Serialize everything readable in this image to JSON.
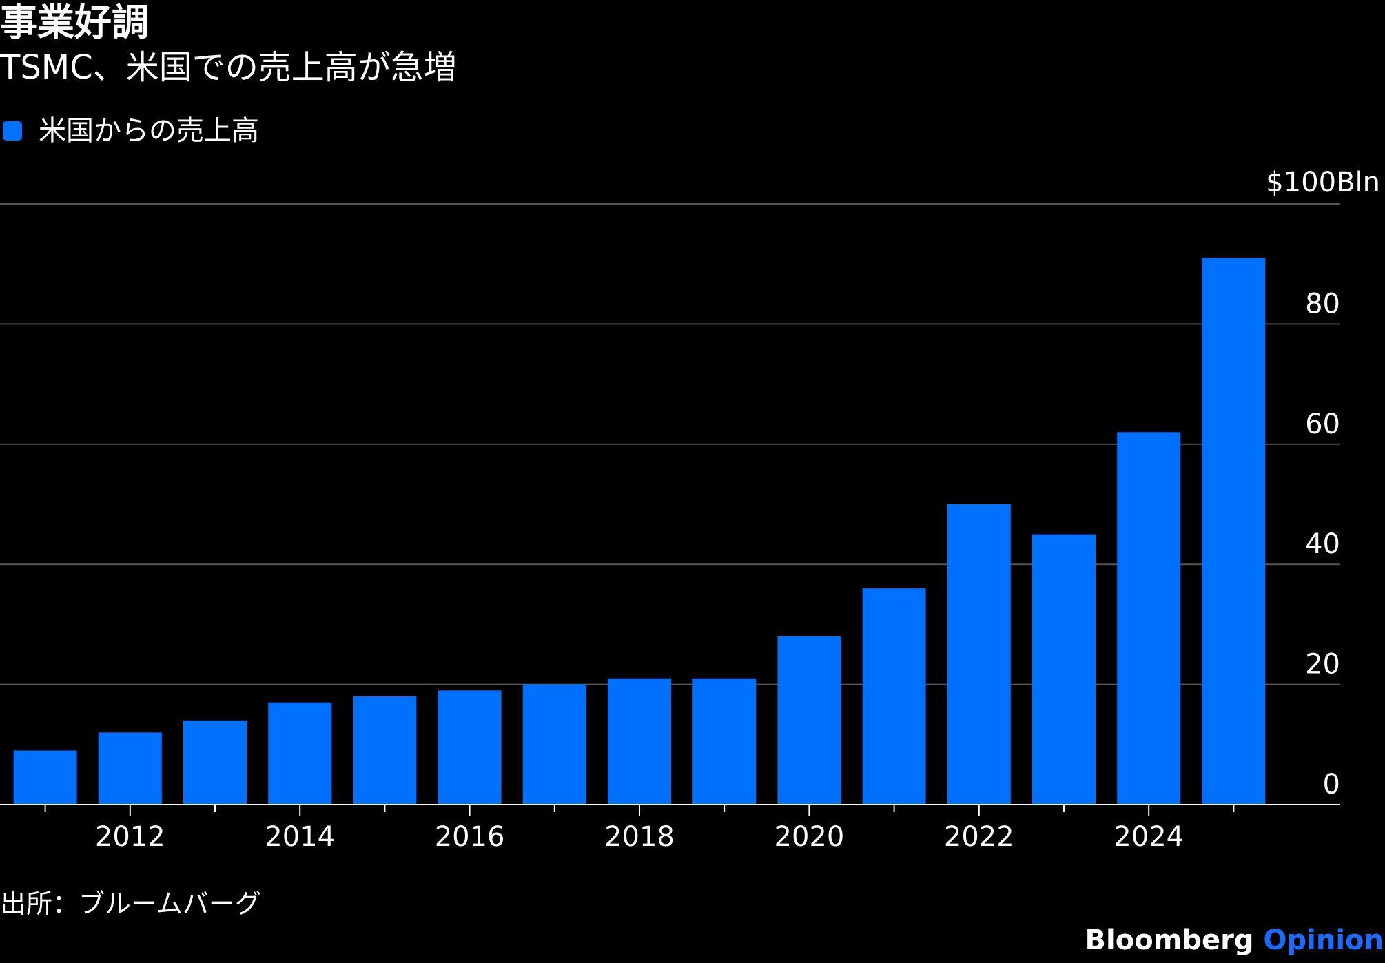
{
  "title": "事業好調",
  "subtitle": "TSMC、米国での売上高が急増",
  "legend": {
    "label": "米国からの売上高",
    "color": "#0070ff"
  },
  "source": "出所：ブルームバーグ",
  "branding": {
    "main": "Bloomberg",
    "accent": "Opinion",
    "accent_color": "#1a6bff"
  },
  "chart_data": {
    "type": "bar",
    "categories": [
      "2011",
      "2012",
      "2013",
      "2014",
      "2015",
      "2016",
      "2017",
      "2018",
      "2019",
      "2020",
      "2021",
      "2022",
      "2023",
      "2024",
      "2025"
    ],
    "x_tick_labels": [
      "2012",
      "2014",
      "2016",
      "2018",
      "2020",
      "2022",
      "2024"
    ],
    "series": [
      {
        "name": "米国からの売上高",
        "color": "#0070ff",
        "values": [
          9,
          12,
          14,
          17,
          18,
          19,
          20,
          21,
          21,
          28,
          36,
          50,
          45,
          62,
          91
        ]
      }
    ],
    "ylim": [
      0,
      100
    ],
    "y_ticks": [
      0,
      20,
      40,
      60,
      80,
      100
    ],
    "y_tick_labels": [
      "0",
      "20",
      "40",
      "60",
      "80",
      "$100Bln"
    ],
    "y_axis_position": "right",
    "grid": true,
    "legend_position": "top-left"
  }
}
